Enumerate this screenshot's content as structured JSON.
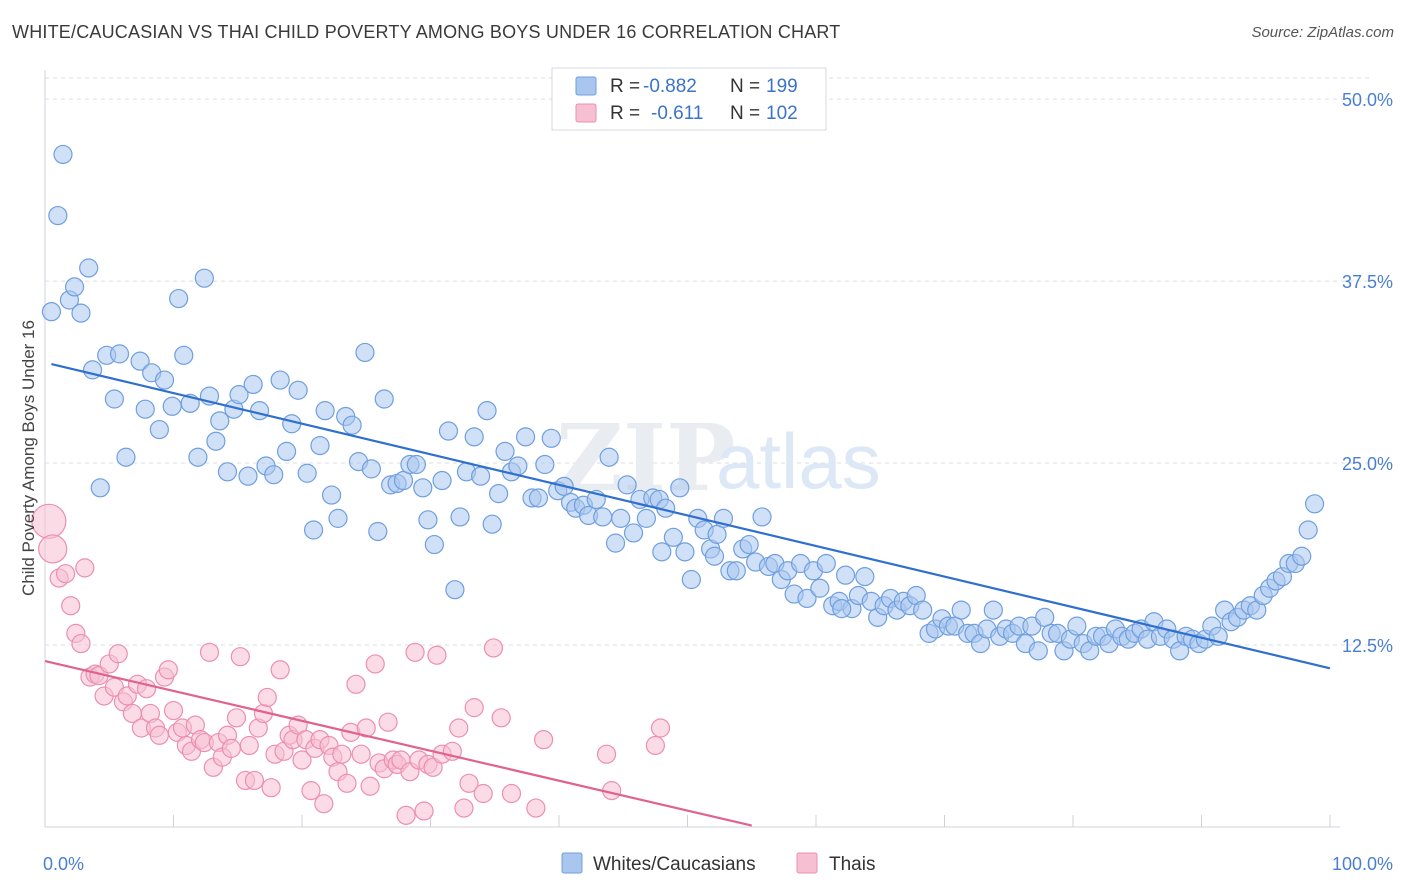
{
  "title": "WHITE/CAUCASIAN VS THAI CHILD POVERTY AMONG BOYS UNDER 16 CORRELATION CHART",
  "source": "Source: ZipAtlas.com",
  "watermark": {
    "zip": "ZIP",
    "atlas": "atlas"
  },
  "colors": {
    "blue_fill": "#a9c6ee",
    "blue_stroke": "#6f9fdf",
    "blue_line": "#2f6fce",
    "pink_fill": "#f7bfd2",
    "pink_stroke": "#ec8fae",
    "pink_line": "#e0628e",
    "grid": "#d9dde3",
    "axis_text": "#4a7fd0"
  },
  "legend": {
    "rows": [
      {
        "r_label": "R =",
        "r_value": "-0.882",
        "n_label": "N =",
        "n_value": "199"
      },
      {
        "r_label": "R =",
        "r_value": "-0.611",
        "n_label": "N =",
        "n_value": "102"
      }
    ],
    "bottom": [
      "Whites/Caucasians",
      "Thais"
    ]
  },
  "chart_data": {
    "type": "scatter",
    "title": "WHITE/CAUCASIAN VS THAI CHILD POVERTY AMONG BOYS UNDER 16 CORRELATION CHART",
    "xlabel": "",
    "ylabel": "Child Poverty Among Boys Under 16",
    "xlim": [
      0,
      100
    ],
    "ylim": [
      0,
      52
    ],
    "x_tick_labels": [
      "0.0%",
      "100.0%"
    ],
    "y_ticks": [
      12.5,
      25.0,
      37.5,
      50.0
    ],
    "y_tick_labels": [
      "12.5%",
      "25.0%",
      "37.5%",
      "50.0%"
    ],
    "series": [
      {
        "name": "Whites/Caucasians",
        "r": -0.882,
        "n": 199,
        "trend": {
          "x": [
            0.5,
            100
          ],
          "y": [
            31.8,
            10.9
          ]
        },
        "points": [
          [
            0.5,
            35.4
          ],
          [
            1.4,
            46.2
          ],
          [
            1.0,
            42.0
          ],
          [
            1.9,
            36.2
          ],
          [
            2.3,
            37.1
          ],
          [
            2.8,
            35.3
          ],
          [
            3.4,
            38.4
          ],
          [
            3.7,
            31.4
          ],
          [
            4.3,
            23.3
          ],
          [
            4.8,
            32.4
          ],
          [
            5.4,
            29.4
          ],
          [
            5.8,
            32.5
          ],
          [
            6.3,
            25.4
          ],
          [
            7.4,
            32.0
          ],
          [
            7.8,
            28.7
          ],
          [
            8.3,
            31.2
          ],
          [
            8.9,
            27.3
          ],
          [
            9.3,
            30.7
          ],
          [
            9.9,
            28.9
          ],
          [
            10.4,
            36.3
          ],
          [
            10.8,
            32.4
          ],
          [
            11.3,
            29.1
          ],
          [
            11.9,
            25.4
          ],
          [
            12.4,
            37.7
          ],
          [
            12.8,
            29.6
          ],
          [
            13.3,
            26.5
          ],
          [
            13.6,
            27.9
          ],
          [
            14.2,
            24.4
          ],
          [
            14.7,
            28.7
          ],
          [
            15.1,
            29.7
          ],
          [
            15.8,
            24.1
          ],
          [
            16.2,
            30.4
          ],
          [
            16.7,
            28.6
          ],
          [
            17.2,
            24.8
          ],
          [
            17.8,
            24.2
          ],
          [
            18.3,
            30.7
          ],
          [
            18.8,
            25.8
          ],
          [
            19.2,
            27.7
          ],
          [
            19.7,
            30.0
          ],
          [
            20.4,
            24.3
          ],
          [
            20.9,
            20.4
          ],
          [
            21.4,
            26.2
          ],
          [
            21.8,
            28.6
          ],
          [
            22.3,
            22.8
          ],
          [
            22.8,
            21.2
          ],
          [
            23.4,
            28.2
          ],
          [
            23.9,
            27.6
          ],
          [
            24.4,
            25.1
          ],
          [
            24.9,
            32.6
          ],
          [
            25.4,
            24.6
          ],
          [
            25.9,
            20.3
          ],
          [
            26.4,
            29.4
          ],
          [
            26.9,
            23.5
          ],
          [
            27.4,
            23.6
          ],
          [
            27.9,
            23.8
          ],
          [
            28.4,
            24.9
          ],
          [
            28.9,
            24.9
          ],
          [
            29.4,
            23.3
          ],
          [
            29.8,
            21.1
          ],
          [
            30.3,
            19.4
          ],
          [
            30.9,
            23.8
          ],
          [
            31.4,
            27.2
          ],
          [
            31.9,
            16.3
          ],
          [
            32.3,
            21.3
          ],
          [
            32.8,
            24.4
          ],
          [
            33.4,
            26.8
          ],
          [
            33.9,
            24.1
          ],
          [
            34.4,
            28.6
          ],
          [
            34.8,
            20.8
          ],
          [
            35.3,
            22.9
          ],
          [
            35.8,
            25.8
          ],
          [
            36.3,
            24.4
          ],
          [
            36.8,
            24.8
          ],
          [
            37.4,
            26.8
          ],
          [
            37.9,
            22.6
          ],
          [
            38.4,
            22.6
          ],
          [
            38.9,
            24.9
          ],
          [
            39.4,
            26.7
          ],
          [
            39.9,
            23.1
          ],
          [
            40.4,
            23.4
          ],
          [
            40.9,
            22.3
          ],
          [
            41.3,
            21.9
          ],
          [
            41.9,
            22.1
          ],
          [
            42.3,
            21.4
          ],
          [
            42.9,
            22.5
          ],
          [
            43.4,
            21.3
          ],
          [
            43.9,
            25.4
          ],
          [
            44.4,
            19.5
          ],
          [
            44.8,
            21.2
          ],
          [
            45.3,
            23.5
          ],
          [
            45.8,
            20.2
          ],
          [
            46.3,
            22.5
          ],
          [
            46.8,
            21.2
          ],
          [
            47.3,
            22.6
          ],
          [
            47.8,
            22.5
          ],
          [
            48.3,
            21.9
          ],
          [
            48.9,
            19.9
          ],
          [
            49.4,
            23.3
          ],
          [
            49.8,
            18.9
          ],
          [
            50.3,
            17.0
          ],
          [
            50.8,
            21.2
          ],
          [
            51.3,
            20.4
          ],
          [
            51.8,
            19.1
          ],
          [
            52.3,
            20.1
          ],
          [
            52.8,
            21.2
          ],
          [
            53.3,
            17.6
          ],
          [
            53.8,
            17.6
          ],
          [
            54.3,
            19.1
          ],
          [
            54.8,
            19.4
          ],
          [
            55.3,
            18.2
          ],
          [
            55.8,
            21.3
          ],
          [
            56.3,
            17.9
          ],
          [
            56.8,
            18.1
          ],
          [
            57.3,
            17.0
          ],
          [
            57.8,
            17.6
          ],
          [
            58.3,
            16.0
          ],
          [
            58.8,
            18.1
          ],
          [
            59.3,
            15.7
          ],
          [
            59.8,
            17.6
          ],
          [
            60.3,
            16.4
          ],
          [
            60.8,
            18.1
          ],
          [
            61.3,
            15.2
          ],
          [
            61.8,
            15.5
          ],
          [
            62.3,
            17.3
          ],
          [
            62.8,
            15.0
          ],
          [
            63.3,
            15.9
          ],
          [
            63.8,
            17.2
          ],
          [
            64.3,
            15.5
          ],
          [
            64.8,
            14.4
          ],
          [
            65.3,
            15.2
          ],
          [
            65.8,
            15.7
          ],
          [
            66.3,
            14.9
          ],
          [
            66.8,
            15.5
          ],
          [
            67.3,
            15.2
          ],
          [
            67.8,
            15.9
          ],
          [
            68.3,
            14.9
          ],
          [
            68.8,
            13.3
          ],
          [
            69.3,
            13.6
          ],
          [
            69.8,
            14.3
          ],
          [
            70.3,
            13.8
          ],
          [
            70.8,
            13.8
          ],
          [
            71.3,
            14.9
          ],
          [
            71.8,
            13.3
          ],
          [
            72.3,
            13.3
          ],
          [
            72.8,
            12.6
          ],
          [
            73.3,
            13.6
          ],
          [
            73.8,
            14.9
          ],
          [
            74.3,
            13.1
          ],
          [
            74.8,
            13.6
          ],
          [
            75.3,
            13.3
          ],
          [
            75.8,
            13.8
          ],
          [
            76.3,
            12.6
          ],
          [
            76.8,
            13.8
          ],
          [
            77.3,
            12.1
          ],
          [
            77.8,
            14.4
          ],
          [
            78.3,
            13.3
          ],
          [
            78.8,
            13.3
          ],
          [
            79.3,
            12.1
          ],
          [
            79.8,
            12.9
          ],
          [
            80.3,
            13.8
          ],
          [
            80.8,
            12.6
          ],
          [
            81.3,
            12.1
          ],
          [
            81.8,
            13.1
          ],
          [
            82.3,
            13.1
          ],
          [
            82.8,
            12.6
          ],
          [
            83.3,
            13.6
          ],
          [
            83.8,
            13.1
          ],
          [
            84.3,
            12.9
          ],
          [
            84.8,
            13.3
          ],
          [
            85.3,
            13.6
          ],
          [
            85.8,
            12.9
          ],
          [
            86.3,
            14.1
          ],
          [
            86.8,
            13.1
          ],
          [
            87.3,
            13.6
          ],
          [
            87.8,
            12.9
          ],
          [
            88.3,
            12.1
          ],
          [
            88.8,
            13.1
          ],
          [
            89.3,
            12.9
          ],
          [
            89.8,
            12.6
          ],
          [
            90.3,
            12.9
          ],
          [
            90.8,
            13.8
          ],
          [
            91.3,
            13.1
          ],
          [
            91.8,
            14.9
          ],
          [
            92.3,
            14.1
          ],
          [
            92.8,
            14.4
          ],
          [
            93.3,
            14.9
          ],
          [
            93.8,
            15.2
          ],
          [
            94.3,
            14.9
          ],
          [
            94.8,
            15.9
          ],
          [
            95.3,
            16.4
          ],
          [
            95.8,
            16.9
          ],
          [
            96.3,
            17.2
          ],
          [
            96.8,
            18.1
          ],
          [
            97.3,
            18.1
          ],
          [
            97.8,
            18.6
          ],
          [
            98.3,
            20.4
          ],
          [
            98.8,
            22.2
          ],
          [
            52.1,
            18.6
          ],
          [
            48.0,
            18.9
          ],
          [
            62.0,
            15.0
          ]
        ]
      },
      {
        "name": "Thais",
        "r": -0.611,
        "n": 102,
        "trend": {
          "x": [
            0.0,
            55.0
          ],
          "y": [
            11.4,
            0.1
          ]
        },
        "points": [
          [
            0.3,
            21.0
          ],
          [
            0.6,
            19.1
          ],
          [
            1.1,
            17.1
          ],
          [
            1.6,
            17.4
          ],
          [
            2.0,
            15.2
          ],
          [
            2.4,
            13.3
          ],
          [
            2.8,
            12.6
          ],
          [
            3.1,
            17.8
          ],
          [
            3.5,
            10.3
          ],
          [
            3.9,
            10.5
          ],
          [
            4.2,
            10.4
          ],
          [
            4.6,
            9.0
          ],
          [
            5.0,
            11.2
          ],
          [
            5.4,
            9.6
          ],
          [
            5.7,
            11.9
          ],
          [
            6.1,
            8.6
          ],
          [
            6.4,
            9.0
          ],
          [
            6.8,
            7.8
          ],
          [
            7.2,
            9.8
          ],
          [
            7.5,
            6.8
          ],
          [
            7.9,
            9.5
          ],
          [
            8.2,
            7.8
          ],
          [
            8.6,
            6.8
          ],
          [
            8.9,
            6.3
          ],
          [
            9.3,
            10.3
          ],
          [
            9.6,
            10.8
          ],
          [
            10.0,
            8.0
          ],
          [
            10.3,
            6.5
          ],
          [
            10.7,
            6.8
          ],
          [
            11.0,
            5.6
          ],
          [
            11.4,
            5.2
          ],
          [
            11.7,
            7.0
          ],
          [
            12.1,
            6.0
          ],
          [
            12.4,
            5.8
          ],
          [
            12.8,
            12.0
          ],
          [
            13.1,
            4.1
          ],
          [
            13.5,
            5.8
          ],
          [
            13.8,
            4.8
          ],
          [
            14.2,
            6.3
          ],
          [
            14.5,
            5.4
          ],
          [
            14.9,
            7.5
          ],
          [
            15.2,
            11.7
          ],
          [
            15.6,
            3.2
          ],
          [
            15.9,
            5.6
          ],
          [
            16.3,
            3.2
          ],
          [
            16.6,
            6.8
          ],
          [
            17.0,
            7.8
          ],
          [
            17.3,
            8.9
          ],
          [
            17.6,
            2.7
          ],
          [
            17.9,
            5.0
          ],
          [
            18.3,
            10.8
          ],
          [
            18.6,
            5.2
          ],
          [
            19.0,
            6.3
          ],
          [
            19.3,
            6.0
          ],
          [
            19.7,
            7.0
          ],
          [
            20.0,
            4.6
          ],
          [
            20.3,
            6.0
          ],
          [
            20.7,
            2.5
          ],
          [
            21.0,
            5.4
          ],
          [
            21.4,
            6.0
          ],
          [
            21.7,
            1.6
          ],
          [
            22.1,
            5.6
          ],
          [
            22.4,
            4.8
          ],
          [
            22.8,
            3.8
          ],
          [
            23.1,
            5.0
          ],
          [
            23.5,
            3.0
          ],
          [
            23.8,
            6.5
          ],
          [
            24.2,
            9.8
          ],
          [
            24.6,
            5.0
          ],
          [
            25.0,
            6.8
          ],
          [
            25.3,
            2.8
          ],
          [
            25.7,
            11.2
          ],
          [
            26.0,
            4.4
          ],
          [
            26.4,
            4.0
          ],
          [
            26.7,
            7.2
          ],
          [
            27.1,
            4.6
          ],
          [
            27.4,
            4.3
          ],
          [
            27.7,
            4.6
          ],
          [
            28.1,
            0.8
          ],
          [
            28.4,
            3.8
          ],
          [
            28.8,
            12.0
          ],
          [
            29.1,
            4.6
          ],
          [
            29.5,
            1.1
          ],
          [
            29.8,
            4.3
          ],
          [
            30.2,
            4.1
          ],
          [
            30.5,
            11.8
          ],
          [
            30.9,
            5.0
          ],
          [
            31.7,
            5.2
          ],
          [
            32.2,
            6.8
          ],
          [
            32.6,
            1.3
          ],
          [
            33.0,
            3.0
          ],
          [
            33.4,
            8.2
          ],
          [
            34.1,
            2.3
          ],
          [
            34.9,
            12.3
          ],
          [
            35.5,
            7.5
          ],
          [
            36.3,
            2.3
          ],
          [
            38.2,
            1.3
          ],
          [
            38.8,
            6.0
          ],
          [
            43.7,
            5.0
          ],
          [
            44.1,
            2.5
          ],
          [
            47.5,
            5.6
          ],
          [
            47.9,
            6.8
          ]
        ]
      }
    ]
  }
}
